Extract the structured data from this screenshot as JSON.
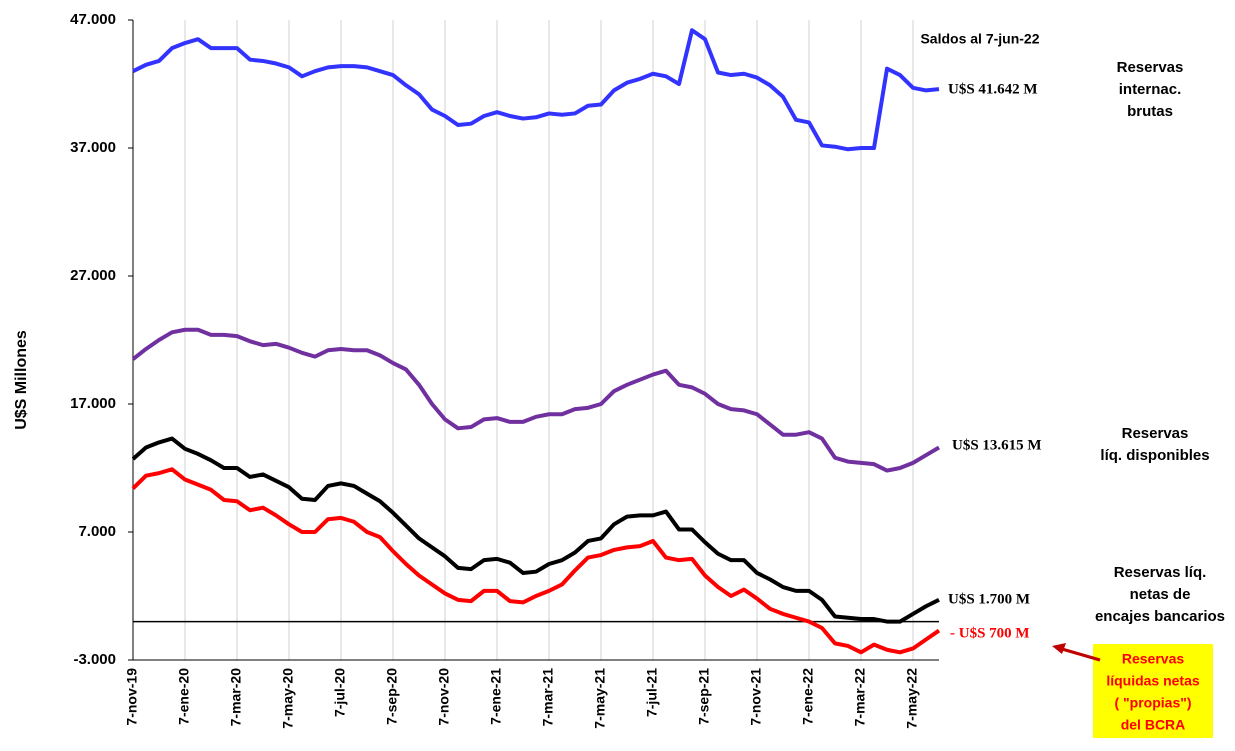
{
  "chart_data": {
    "type": "line",
    "y_label": "U$S Millones",
    "categories": [
      "7-nov-19",
      null,
      null,
      null,
      "7-ene-20",
      null,
      null,
      null,
      "7-mar-20",
      null,
      null,
      null,
      "7-may-20",
      null,
      null,
      null,
      "7-jul-20",
      null,
      null,
      null,
      "7-sep-20",
      null,
      null,
      null,
      "7-nov-20",
      null,
      null,
      null,
      "7-ene-21",
      null,
      null,
      null,
      "7-mar-21",
      null,
      null,
      null,
      "7-may-21",
      null,
      null,
      null,
      "7-jul-21",
      null,
      null,
      null,
      "7-sep-21",
      null,
      null,
      null,
      "7-nov-21",
      null,
      null,
      null,
      "7-ene-22",
      null,
      null,
      null,
      "7-mar-22",
      null,
      null,
      null,
      "7-may-22",
      null,
      null
    ],
    "series": [
      {
        "color": "#3333ff",
        "values": [
          43000,
          43500,
          43800,
          44800,
          45200,
          45500,
          44800,
          44800,
          44800,
          43900,
          43800,
          43600,
          43300,
          42600,
          43000,
          43300,
          43400,
          43400,
          43300,
          43000,
          42700,
          41900,
          41200,
          40000,
          39500,
          38800,
          38900,
          39500,
          39800,
          39500,
          39300,
          39400,
          39700,
          39600,
          39700,
          40300,
          40400,
          41500,
          42100,
          42400,
          42800,
          42600,
          42000,
          46200,
          45500,
          42900,
          42700,
          42800,
          42500,
          41900,
          41000,
          39200,
          39000,
          37200,
          37100,
          36900,
          37000,
          37000,
          43200,
          42700,
          41700,
          41500,
          41600
        ]
      },
      {
        "color": "#7030a0",
        "values": [
          20500,
          21300,
          22000,
          22600,
          22800,
          22800,
          22400,
          22400,
          22300,
          21900,
          21600,
          21700,
          21400,
          21000,
          20700,
          21200,
          21300,
          21200,
          21200,
          20800,
          20200,
          19700,
          18500,
          17000,
          15800,
          15100,
          15200,
          15800,
          15900,
          15600,
          15600,
          16000,
          16200,
          16200,
          16600,
          16700,
          17000,
          18000,
          18500,
          18900,
          19300,
          19600,
          18500,
          18300,
          17800,
          17000,
          16600,
          16500,
          16200,
          15400,
          14600,
          14600,
          14800,
          14300,
          12800,
          12500,
          12400,
          12300,
          11800,
          12000,
          12400,
          13000,
          13600
        ]
      },
      {
        "color": "#000000",
        "values": [
          12700,
          13600,
          14000,
          14300,
          13500,
          13100,
          12600,
          12000,
          12000,
          11300,
          11500,
          11000,
          10500,
          9600,
          9500,
          10600,
          10800,
          10600,
          10000,
          9400,
          8500,
          7500,
          6500,
          5800,
          5100,
          4200,
          4100,
          4800,
          4900,
          4600,
          3800,
          3900,
          4500,
          4800,
          5400,
          6300,
          6500,
          7600,
          8200,
          8300,
          8300,
          8600,
          7200,
          7200,
          6200,
          5300,
          4800,
          4800,
          3800,
          3300,
          2700,
          2400,
          2400,
          1700,
          400,
          300,
          200,
          200,
          0,
          0,
          600,
          1200,
          1700
        ]
      },
      {
        "color": "#ff0000",
        "values": [
          10400,
          11400,
          11600,
          11900,
          11100,
          10700,
          10300,
          9500,
          9400,
          8700,
          8900,
          8300,
          7600,
          7000,
          7000,
          8000,
          8100,
          7800,
          7000,
          6600,
          5500,
          4500,
          3600,
          2900,
          2200,
          1700,
          1600,
          2400,
          2400,
          1600,
          1500,
          2000,
          2400,
          2900,
          4000,
          5000,
          5200,
          5600,
          5800,
          5900,
          6300,
          5000,
          4800,
          4900,
          3600,
          2700,
          2000,
          2500,
          1800,
          1000,
          600,
          300,
          0,
          -500,
          -1700,
          -1900,
          -2400,
          -1800,
          -2200,
          -2400,
          -2100,
          -1400,
          -700
        ]
      }
    ],
    "ylim": [
      -3000,
      47000
    ],
    "yticks": [
      {
        "value": -3000,
        "label": "-3.000"
      },
      {
        "value": 7000,
        "label": "7.000"
      },
      {
        "value": 17000,
        "label": "17.000"
      },
      {
        "value": 27000,
        "label": "27.000"
      },
      {
        "value": 37000,
        "label": "37.000"
      },
      {
        "value": 47000,
        "label": "47.000"
      }
    ],
    "hline": 0,
    "grid": true,
    "annotations": [
      {
        "lines": [
          "Saldos al 7-jun-22"
        ],
        "color": "#000000"
      },
      {
        "lines": [
          "U$S 41.642 M"
        ],
        "color": "#000000"
      },
      {
        "lines": [
          "Reservas",
          "internac.",
          "brutas"
        ],
        "color": "#000000"
      },
      {
        "lines": [
          "U$S 13.615 M"
        ],
        "color": "#000000"
      },
      {
        "lines": [
          "Reservas",
          "líq. disponibles"
        ],
        "color": "#000000"
      },
      {
        "lines": [
          "U$S 1.700 M"
        ],
        "color": "#000000"
      },
      {
        "lines": [
          "Reservas líq.",
          "netas de",
          "encajes bancarios"
        ],
        "color": "#000000"
      },
      {
        "lines": [
          "- U$S 700 M"
        ],
        "color": "#ff0000"
      },
      {
        "lines": [
          "Reservas",
          "líquidas netas",
          "( \"propias\")",
          "del BCRA"
        ],
        "color": "#ff0000"
      }
    ]
  }
}
